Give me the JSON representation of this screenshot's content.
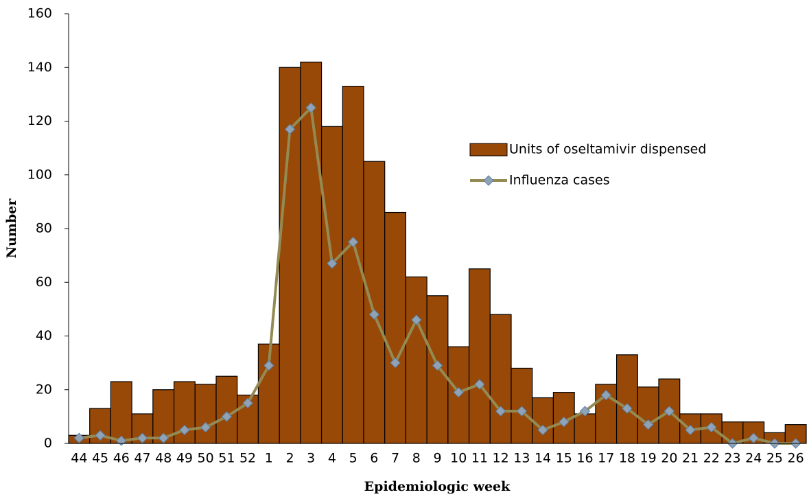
{
  "chart_data": {
    "type": "bar",
    "x_label": "Epidemiologic week",
    "y_label": "Number",
    "categories": [
      "44",
      "45",
      "46",
      "47",
      "48",
      "49",
      "50",
      "51",
      "52",
      "1",
      "2",
      "3",
      "4",
      "5",
      "6",
      "7",
      "8",
      "9",
      "10",
      "11",
      "12",
      "13",
      "14",
      "15",
      "16",
      "17",
      "18",
      "19",
      "20",
      "21",
      "22",
      "23",
      "24",
      "25",
      "26"
    ],
    "series": [
      {
        "name": "Units of oseltamivir dispensed",
        "type": "bar",
        "color": "#984807",
        "values": [
          3,
          13,
          23,
          11,
          20,
          23,
          22,
          25,
          18,
          37,
          140,
          142,
          118,
          133,
          105,
          86,
          62,
          55,
          36,
          65,
          48,
          28,
          17,
          19,
          11,
          22,
          33,
          21,
          24,
          11,
          11,
          8,
          8,
          4,
          7
        ]
      },
      {
        "name": "Influenza cases",
        "type": "line",
        "color": "#948a54",
        "marker_color": "#8fa3b5",
        "values": [
          2,
          3,
          1,
          2,
          2,
          5,
          6,
          10,
          15,
          29,
          117,
          125,
          67,
          75,
          48,
          30,
          46,
          29,
          19,
          22,
          12,
          12,
          5,
          8,
          12,
          18,
          13,
          7,
          12,
          5,
          6,
          0,
          2,
          0,
          0
        ]
      }
    ],
    "ylim": [
      0,
      160
    ],
    "yticks": [
      0,
      20,
      40,
      60,
      80,
      100,
      120,
      140,
      160
    ],
    "grid": false
  }
}
